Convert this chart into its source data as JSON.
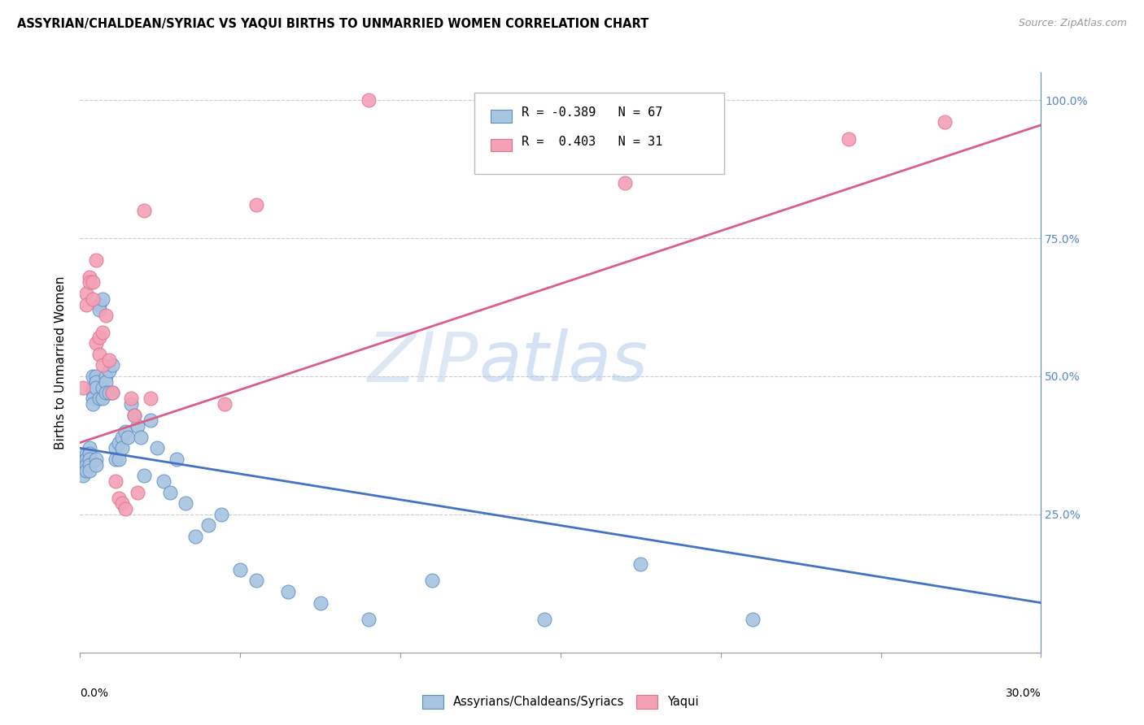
{
  "title": "ASSYRIAN/CHALDEAN/SYRIAC VS YAQUI BIRTHS TO UNMARRIED WOMEN CORRELATION CHART",
  "source": "Source: ZipAtlas.com",
  "ylabel": "Births to Unmarried Women",
  "right_yticks": [
    "100.0%",
    "75.0%",
    "50.0%",
    "25.0%"
  ],
  "right_ytick_vals": [
    1.0,
    0.75,
    0.5,
    0.25
  ],
  "legend_blue_r": "R = -0.389",
  "legend_blue_n": "N = 67",
  "legend_pink_r": "R =  0.403",
  "legend_pink_n": "N = 31",
  "blue_color": "#a8c4e0",
  "pink_color": "#f4a0b5",
  "blue_edge_color": "#5b8dc8",
  "pink_edge_color": "#e07090",
  "blue_line_color": "#4472c4",
  "pink_line_color": "#d95f8a",
  "watermark_zip": "ZIP",
  "watermark_atlas": "atlas",
  "blue_scatter_x": [
    0.001,
    0.001,
    0.001,
    0.001,
    0.002,
    0.002,
    0.002,
    0.002,
    0.003,
    0.003,
    0.003,
    0.003,
    0.003,
    0.004,
    0.004,
    0.004,
    0.004,
    0.004,
    0.005,
    0.005,
    0.005,
    0.005,
    0.005,
    0.006,
    0.006,
    0.006,
    0.007,
    0.007,
    0.007,
    0.008,
    0.008,
    0.008,
    0.009,
    0.009,
    0.01,
    0.01,
    0.011,
    0.011,
    0.012,
    0.012,
    0.013,
    0.013,
    0.014,
    0.015,
    0.016,
    0.017,
    0.018,
    0.019,
    0.02,
    0.022,
    0.024,
    0.026,
    0.028,
    0.03,
    0.033,
    0.036,
    0.04,
    0.044,
    0.05,
    0.055,
    0.065,
    0.075,
    0.09,
    0.11,
    0.145,
    0.175,
    0.21
  ],
  "blue_scatter_y": [
    0.35,
    0.34,
    0.33,
    0.32,
    0.36,
    0.35,
    0.34,
    0.33,
    0.37,
    0.36,
    0.35,
    0.34,
    0.33,
    0.5,
    0.48,
    0.47,
    0.46,
    0.45,
    0.5,
    0.49,
    0.48,
    0.35,
    0.34,
    0.63,
    0.62,
    0.46,
    0.64,
    0.48,
    0.46,
    0.5,
    0.49,
    0.47,
    0.51,
    0.47,
    0.52,
    0.47,
    0.37,
    0.35,
    0.38,
    0.35,
    0.39,
    0.37,
    0.4,
    0.39,
    0.45,
    0.43,
    0.41,
    0.39,
    0.32,
    0.42,
    0.37,
    0.31,
    0.29,
    0.35,
    0.27,
    0.21,
    0.23,
    0.25,
    0.15,
    0.13,
    0.11,
    0.09,
    0.06,
    0.13,
    0.06,
    0.16,
    0.06
  ],
  "pink_scatter_x": [
    0.001,
    0.002,
    0.002,
    0.003,
    0.003,
    0.004,
    0.004,
    0.005,
    0.005,
    0.006,
    0.006,
    0.007,
    0.007,
    0.008,
    0.009,
    0.01,
    0.011,
    0.012,
    0.013,
    0.014,
    0.016,
    0.017,
    0.018,
    0.02,
    0.022,
    0.045,
    0.055,
    0.09,
    0.17,
    0.24,
    0.27
  ],
  "pink_scatter_y": [
    0.48,
    0.65,
    0.63,
    0.68,
    0.67,
    0.67,
    0.64,
    0.71,
    0.56,
    0.57,
    0.54,
    0.58,
    0.52,
    0.61,
    0.53,
    0.47,
    0.31,
    0.28,
    0.27,
    0.26,
    0.46,
    0.43,
    0.29,
    0.8,
    0.46,
    0.45,
    0.81,
    1.0,
    0.85,
    0.93,
    0.96
  ],
  "xlim": [
    0.0,
    0.3
  ],
  "ylim": [
    0.0,
    1.05
  ],
  "blue_trend": [
    0.37,
    0.09
  ],
  "pink_trend": [
    0.38,
    0.955
  ]
}
